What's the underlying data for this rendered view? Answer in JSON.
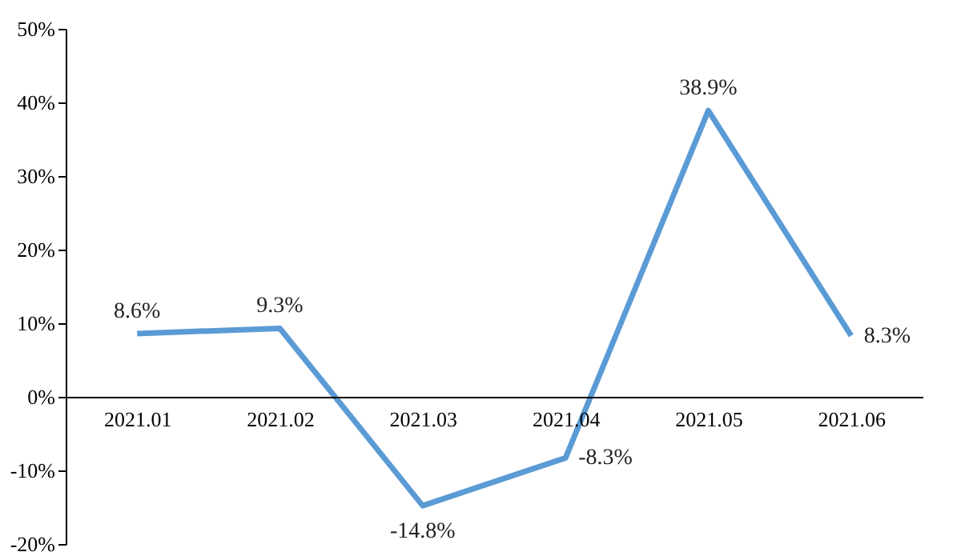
{
  "chart_data": {
    "type": "line",
    "categories": [
      "2021.01",
      "2021.02",
      "2021.03",
      "2021.04",
      "2021.05",
      "2021.06"
    ],
    "series": [
      {
        "color": "#5b9bd5",
        "values": [
          8.6,
          9.3,
          -14.8,
          -8.3,
          38.9,
          8.3
        ],
        "value_labels": [
          "8.6%",
          "9.3%",
          "-14.8%",
          "-8.3%",
          "38.9%",
          "8.3%"
        ]
      }
    ],
    "ylim": [
      -20,
      50
    ],
    "yticks": [
      {
        "value": -20,
        "label": "-20%"
      },
      {
        "value": -10,
        "label": "-10%"
      },
      {
        "value": 0,
        "label": "0%"
      },
      {
        "value": 10,
        "label": "10%"
      },
      {
        "value": 20,
        "label": "20%"
      },
      {
        "value": 30,
        "label": "30%"
      },
      {
        "value": 40,
        "label": "40%"
      },
      {
        "value": 50,
        "label": "50%"
      }
    ],
    "grid": false,
    "marker": "none",
    "line_style": "solid"
  }
}
